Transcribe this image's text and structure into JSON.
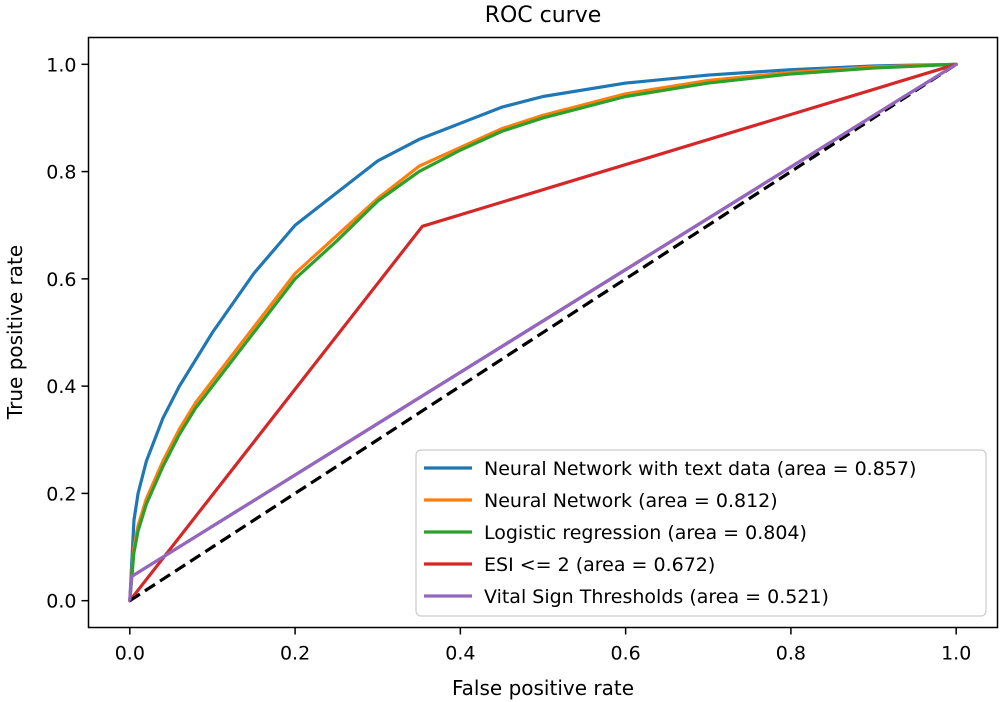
{
  "chart_data": {
    "type": "line",
    "title": "ROC curve",
    "xlabel": "False positive rate",
    "ylabel": "True positive rate",
    "xlim": [
      -0.05,
      1.05
    ],
    "ylim": [
      -0.05,
      1.05
    ],
    "xticks": [
      0.0,
      0.2,
      0.4,
      0.6,
      0.8,
      1.0
    ],
    "xtick_labels": [
      "0.0",
      "0.2",
      "0.4",
      "0.6",
      "0.8",
      "1.0"
    ],
    "yticks": [
      0.0,
      0.2,
      0.4,
      0.6,
      0.8,
      1.0
    ],
    "ytick_labels": [
      "0.0",
      "0.2",
      "0.4",
      "0.6",
      "0.8",
      "1.0"
    ],
    "grid": false,
    "legend_position": "lower-right",
    "baseline": {
      "style": "dashed",
      "color": "#000000",
      "points": [
        [
          0,
          0
        ],
        [
          1,
          1
        ]
      ]
    },
    "series": [
      {
        "name": "Neural Network with text data (area = 0.857)",
        "color": "#1f77b4",
        "points": [
          [
            0,
            0
          ],
          [
            0.005,
            0.15
          ],
          [
            0.01,
            0.2
          ],
          [
            0.02,
            0.26
          ],
          [
            0.04,
            0.34
          ],
          [
            0.06,
            0.4
          ],
          [
            0.08,
            0.45
          ],
          [
            0.1,
            0.5
          ],
          [
            0.15,
            0.61
          ],
          [
            0.2,
            0.7
          ],
          [
            0.25,
            0.76
          ],
          [
            0.3,
            0.82
          ],
          [
            0.35,
            0.86
          ],
          [
            0.4,
            0.89
          ],
          [
            0.45,
            0.92
          ],
          [
            0.5,
            0.94
          ],
          [
            0.6,
            0.965
          ],
          [
            0.7,
            0.98
          ],
          [
            0.8,
            0.99
          ],
          [
            0.9,
            0.997
          ],
          [
            1.0,
            1.0
          ]
        ]
      },
      {
        "name": "Neural Network (area = 0.812)",
        "color": "#ff7f0e",
        "points": [
          [
            0,
            0
          ],
          [
            0.005,
            0.1
          ],
          [
            0.01,
            0.14
          ],
          [
            0.02,
            0.19
          ],
          [
            0.04,
            0.26
          ],
          [
            0.06,
            0.32
          ],
          [
            0.08,
            0.37
          ],
          [
            0.1,
            0.41
          ],
          [
            0.15,
            0.51
          ],
          [
            0.2,
            0.61
          ],
          [
            0.25,
            0.68
          ],
          [
            0.3,
            0.75
          ],
          [
            0.35,
            0.81
          ],
          [
            0.4,
            0.845
          ],
          [
            0.45,
            0.88
          ],
          [
            0.5,
            0.905
          ],
          [
            0.6,
            0.945
          ],
          [
            0.7,
            0.97
          ],
          [
            0.8,
            0.985
          ],
          [
            0.9,
            0.995
          ],
          [
            1.0,
            1.0
          ]
        ]
      },
      {
        "name": "Logistic regression (area = 0.804)",
        "color": "#2ca02c",
        "points": [
          [
            0,
            0
          ],
          [
            0.005,
            0.09
          ],
          [
            0.01,
            0.13
          ],
          [
            0.02,
            0.18
          ],
          [
            0.04,
            0.25
          ],
          [
            0.06,
            0.31
          ],
          [
            0.08,
            0.36
          ],
          [
            0.1,
            0.4
          ],
          [
            0.15,
            0.5
          ],
          [
            0.2,
            0.6
          ],
          [
            0.25,
            0.67
          ],
          [
            0.3,
            0.745
          ],
          [
            0.35,
            0.8
          ],
          [
            0.4,
            0.84
          ],
          [
            0.45,
            0.875
          ],
          [
            0.5,
            0.9
          ],
          [
            0.6,
            0.94
          ],
          [
            0.7,
            0.965
          ],
          [
            0.8,
            0.982
          ],
          [
            0.9,
            0.993
          ],
          [
            1.0,
            1.0
          ]
        ]
      },
      {
        "name": "ESI <= 2 (area = 0.672)",
        "color": "#d62728",
        "points": [
          [
            0,
            0
          ],
          [
            0.354,
            0.698
          ],
          [
            1.0,
            1.0
          ]
        ]
      },
      {
        "name": "Vital Sign Thresholds (area = 0.521)",
        "color": "#9467bd",
        "points": [
          [
            0,
            0
          ],
          [
            0.002,
            0.045
          ],
          [
            1.0,
            1.0
          ]
        ]
      }
    ]
  }
}
